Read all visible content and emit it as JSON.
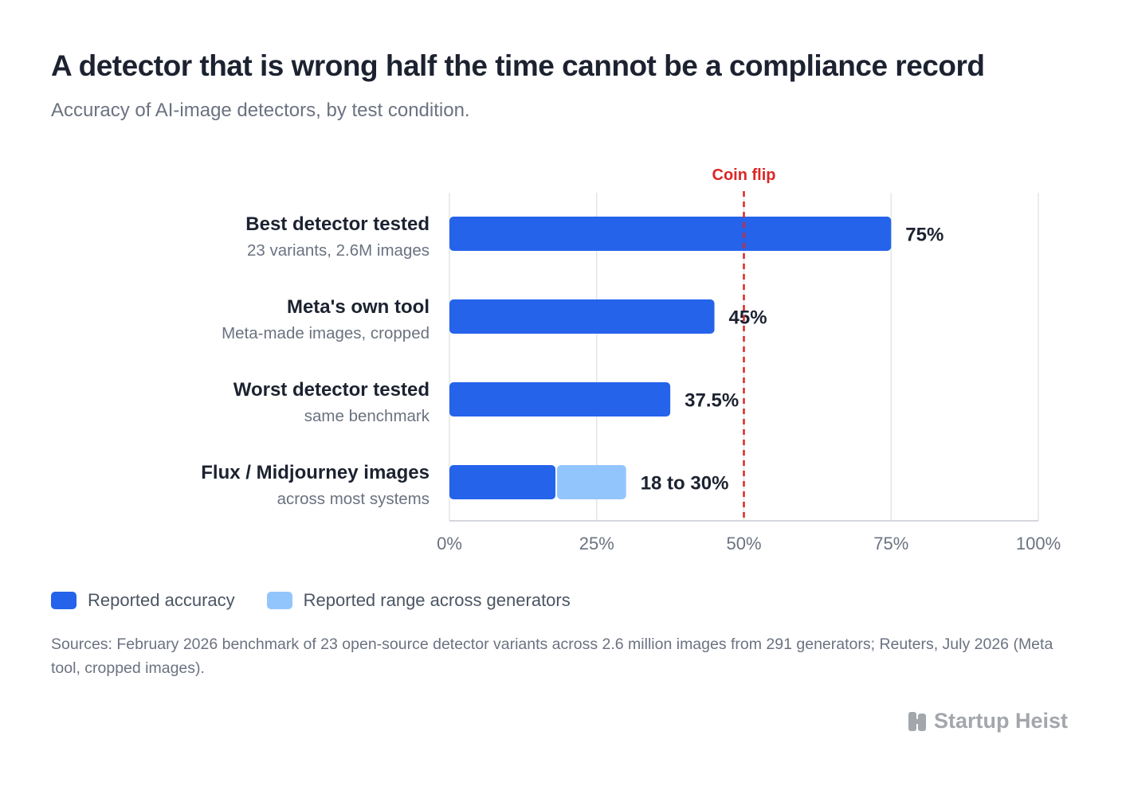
{
  "header": {
    "title": "A detector that is wrong half the time cannot be a compliance record",
    "subtitle": "Accuracy of AI-image detectors, by test condition."
  },
  "chart_data": {
    "type": "bar",
    "orientation": "horizontal",
    "xlim": [
      0,
      100
    ],
    "ticks": [
      {
        "value": 0,
        "label": "0%"
      },
      {
        "value": 25,
        "label": "25%"
      },
      {
        "value": 50,
        "label": "50%"
      },
      {
        "value": 75,
        "label": "75%"
      },
      {
        "value": 100,
        "label": "100%"
      }
    ],
    "reference_line": {
      "value": 50,
      "label": "Coin flip",
      "color": "#dc2626"
    },
    "series": [
      {
        "name": "Reported accuracy",
        "color": "#2563eb"
      },
      {
        "name": "Reported range across generators",
        "color": "#93c5fd"
      }
    ],
    "bars": [
      {
        "label": "Best detector tested",
        "sublabel": "23 variants, 2.6M images",
        "value": 75,
        "value_label": "75%"
      },
      {
        "label": "Meta's own tool",
        "sublabel": "Meta-made images, cropped",
        "value": 45,
        "value_label": "45%"
      },
      {
        "label": "Worst detector tested",
        "sublabel": "same benchmark",
        "value": 37.5,
        "value_label": "37.5%"
      },
      {
        "label": "Flux / Midjourney images",
        "sublabel": "across most systems",
        "value": 18,
        "range": [
          18,
          30
        ],
        "value_label": "18 to 30%"
      }
    ],
    "grid": true,
    "legend_position": "bottom-left"
  },
  "footer": {
    "sources": "Sources: February 2026 benchmark of 23 open-source detector variants across 2.6 million images from 291 generators; Reuters, July 2026 (Meta tool, cropped images).",
    "brand": "Startup Heist",
    "brand_icon": "building-logo-icon"
  }
}
